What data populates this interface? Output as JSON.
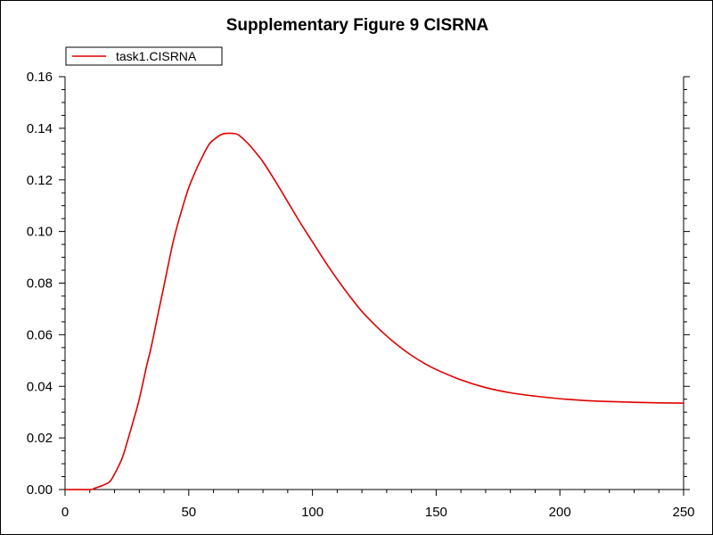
{
  "chart_data": {
    "type": "line",
    "title": "Supplementary Figure 9 CISRNA",
    "xlabel": "",
    "ylabel": "",
    "xlim": [
      0,
      250
    ],
    "ylim": [
      0,
      0.16
    ],
    "x_ticks": [
      "0",
      "50",
      "100",
      "150",
      "200",
      "250"
    ],
    "x_tick_values": [
      0,
      50,
      100,
      150,
      200,
      250
    ],
    "y_ticks": [
      "0.00",
      "0.02",
      "0.04",
      "0.06",
      "0.08",
      "0.10",
      "0.12",
      "0.14",
      "0.16"
    ],
    "y_tick_values": [
      0,
      0.02,
      0.04,
      0.06,
      0.08,
      0.1,
      0.12,
      0.14,
      0.16
    ],
    "grid": false,
    "legend": "top-left",
    "series": [
      {
        "name": "task1.CISRNA",
        "color": "#e00000",
        "x": [
          0,
          10,
          12,
          15,
          18,
          20,
          23,
          25,
          28,
          30,
          33,
          35,
          38,
          40,
          43,
          45,
          48,
          50,
          53,
          55,
          58,
          60,
          63,
          65,
          68,
          70,
          73,
          75,
          78,
          80,
          85,
          90,
          95,
          100,
          105,
          110,
          115,
          120,
          125,
          130,
          135,
          140,
          145,
          150,
          160,
          170,
          180,
          190,
          200,
          210,
          220,
          230,
          240,
          250
        ],
        "y": [
          0,
          0,
          0.0005,
          0.0015,
          0.003,
          0.006,
          0.012,
          0.018,
          0.028,
          0.035,
          0.048,
          0.056,
          0.07,
          0.079,
          0.093,
          0.101,
          0.111,
          0.117,
          0.124,
          0.128,
          0.1335,
          0.1355,
          0.1375,
          0.138,
          0.138,
          0.1375,
          0.135,
          0.133,
          0.1295,
          0.127,
          0.1195,
          0.1115,
          0.1035,
          0.096,
          0.0885,
          0.0815,
          0.075,
          0.069,
          0.064,
          0.0595,
          0.0555,
          0.052,
          0.049,
          0.0465,
          0.0425,
          0.0395,
          0.0375,
          0.0362,
          0.0352,
          0.0345,
          0.0341,
          0.0338,
          0.0336,
          0.0335
        ]
      }
    ]
  }
}
